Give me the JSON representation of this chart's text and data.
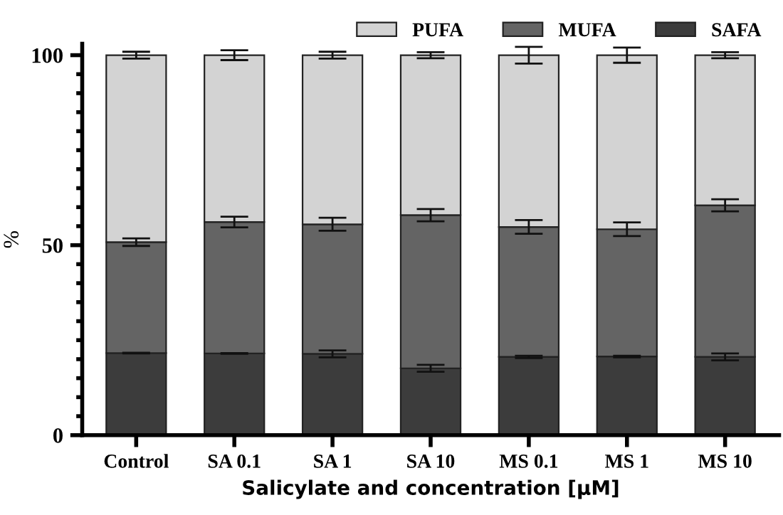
{
  "chart_data": {
    "type": "bar",
    "stacked": true,
    "xlabel": "Salicylate and concentration [μM]",
    "ylabel": "%",
    "categories": [
      "Control",
      "SA 0.1",
      "SA 1",
      "SA 10",
      "MS 0.1",
      "MS 1",
      "MS 10"
    ],
    "series": [
      {
        "name": "SAFA",
        "color": "#3c3c3c",
        "values": [
          21.6,
          21.5,
          21.4,
          17.6,
          20.6,
          20.7,
          20.6
        ],
        "errors": [
          0.1,
          0.1,
          0.9,
          0.9,
          0.3,
          0.2,
          0.9
        ]
      },
      {
        "name": "MUFA",
        "color": "#646464",
        "values": [
          29.2,
          34.6,
          34.1,
          40.3,
          34.2,
          33.5,
          39.9
        ],
        "errors": [
          1.0,
          1.4,
          1.7,
          1.6,
          1.8,
          1.8,
          1.6
        ]
      },
      {
        "name": "PUFA",
        "color": "#d3d3d3",
        "values": [
          49.2,
          43.9,
          44.5,
          42.1,
          45.2,
          45.8,
          39.5
        ],
        "errors": [
          0.9,
          1.3,
          0.9,
          0.8,
          2.2,
          2.0,
          0.8
        ]
      }
    ],
    "ylim": [
      0,
      103
    ],
    "yticks": [
      0,
      {
        "value": 5,
        "label": null
      },
      {
        "value": 10,
        "label": null
      },
      {
        "value": 15,
        "label": null
      },
      {
        "value": 20,
        "label": null
      },
      {
        "value": 25,
        "label": null
      },
      {
        "value": 30,
        "label": null
      },
      {
        "value": 35,
        "label": null
      },
      {
        "value": 40,
        "label": null
      },
      {
        "value": 45,
        "label": null
      },
      50,
      {
        "value": 55,
        "label": null
      },
      {
        "value": 60,
        "label": null
      },
      {
        "value": 65,
        "label": null
      },
      {
        "value": 70,
        "label": null
      },
      {
        "value": 75,
        "label": null
      },
      {
        "value": 80,
        "label": null
      },
      {
        "value": 85,
        "label": null
      },
      {
        "value": 90,
        "label": null
      },
      {
        "value": 95,
        "label": null
      },
      100
    ],
    "grid": false,
    "legend": "top right"
  }
}
